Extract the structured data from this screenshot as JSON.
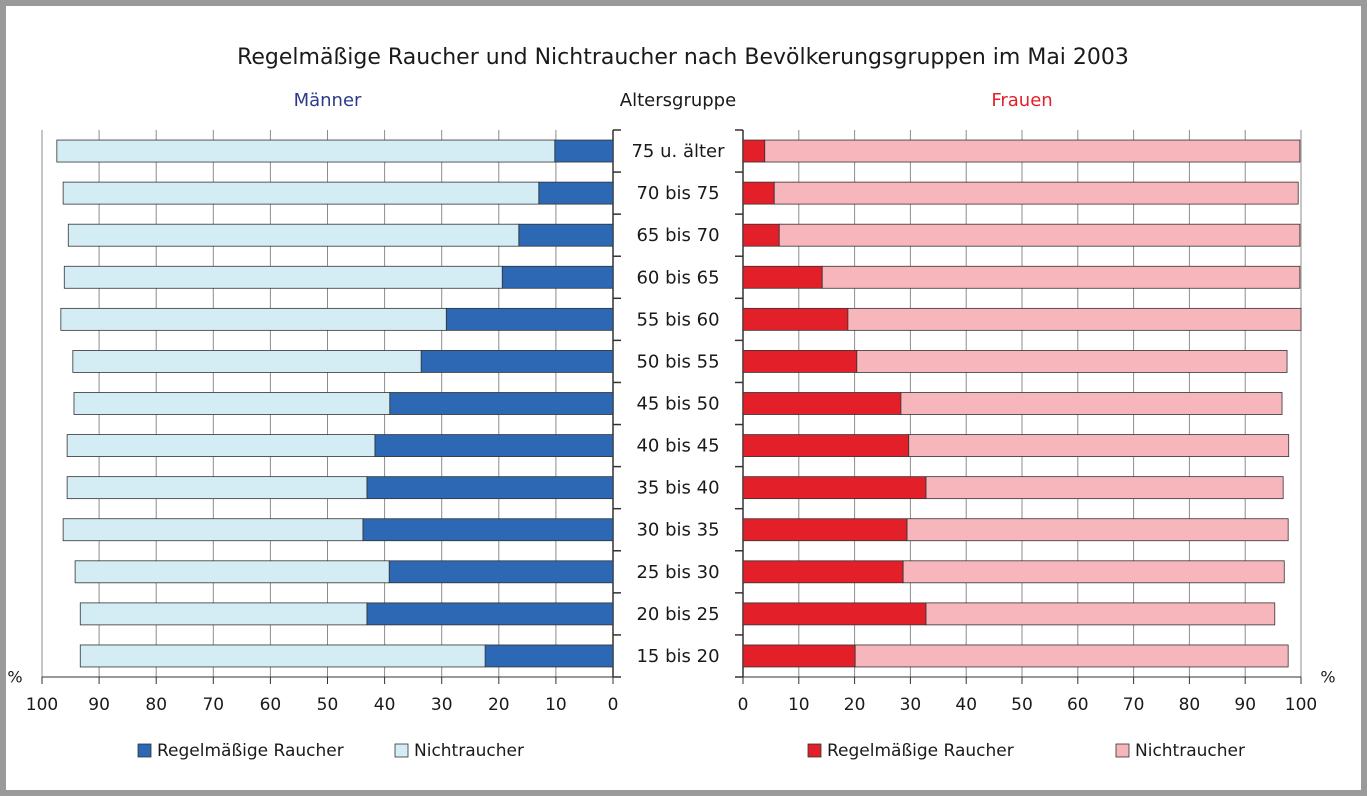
{
  "chart_data": {
    "type": "bar",
    "title": "Regelmäßige Raucher und Nichtraucher nach Bevölkerungsgruppen im Mai 2003",
    "category_label": "Altersgruppe",
    "categories": [
      "75 u. älter",
      "70 bis 75",
      "65 bis 70",
      "60 bis 65",
      "55 bis 60",
      "50 bis 55",
      "45 bis 50",
      "40 bis 45",
      "35 bis 40",
      "30 bis 35",
      "25 bis 30",
      "20 bis 25",
      "15 bis 20"
    ],
    "stacked": true,
    "grid": true,
    "panels": [
      {
        "title": "Männer",
        "title_color": "#2b3a8a",
        "side": "left",
        "x_label": "%",
        "xlim": [
          0,
          100
        ],
        "xticks": [
          0,
          10,
          20,
          30,
          40,
          50,
          60,
          70,
          80,
          90,
          100
        ],
        "series": [
          {
            "name": "Regelmäßige Raucher",
            "color": "#2c68b4",
            "values": [
              10.2,
              13.0,
              16.5,
              19.4,
              29.2,
              33.6,
              39.1,
              41.7,
              43.1,
              43.8,
              39.2,
              43.1,
              22.4
            ]
          },
          {
            "name": "Nichtraucher",
            "color": "#d4edf5",
            "values": [
              87.2,
              83.3,
              78.9,
              76.7,
              67.5,
              61.0,
              55.3,
              53.9,
              52.5,
              52.5,
              55.0,
              50.2,
              70.9
            ]
          }
        ]
      },
      {
        "title": "Frauen",
        "title_color": "#e3202a",
        "side": "right",
        "x_label": "%",
        "xlim": [
          0,
          100
        ],
        "xticks": [
          0,
          10,
          20,
          30,
          40,
          50,
          60,
          70,
          80,
          90,
          100
        ],
        "series": [
          {
            "name": "Regelmäßige Raucher",
            "color": "#e3202a",
            "values": [
              3.9,
              5.6,
              6.5,
              14.2,
              18.8,
              20.4,
              28.3,
              29.7,
              32.8,
              29.4,
              28.7,
              32.8,
              20.1
            ]
          },
          {
            "name": "Nichtraucher",
            "color": "#f7b6bb",
            "values": [
              95.9,
              93.9,
              93.3,
              85.6,
              81.2,
              77.1,
              68.3,
              68.1,
              64.0,
              68.3,
              68.3,
              62.5,
              77.6
            ]
          }
        ]
      }
    ]
  }
}
